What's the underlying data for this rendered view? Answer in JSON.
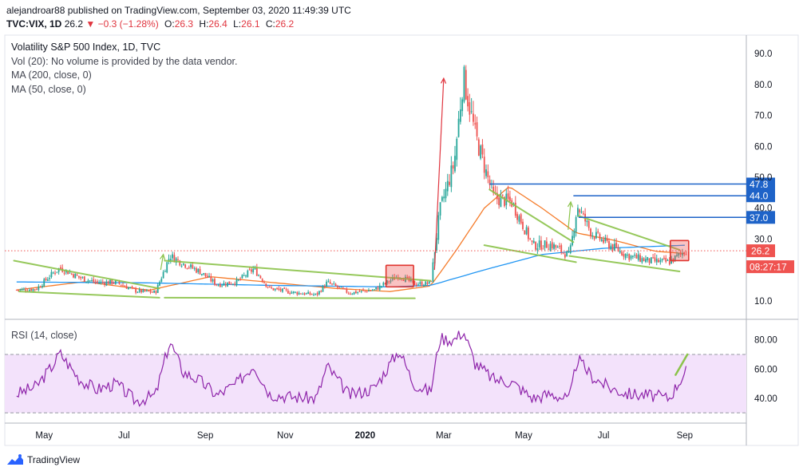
{
  "header": {
    "published_line": "alejandroar88 published on TradingView.com, September 03, 2020 11:49:39 UTC",
    "symbol": "TVC:VIX, 1D",
    "price": "26.2",
    "change": "−0.3 (−1.28%)",
    "o_label": "O:",
    "o_value": "26.3",
    "h_label": "H:",
    "h_value": "26.4",
    "l_label": "L:",
    "l_value": "26.1",
    "c_label": "C:",
    "c_value": "26.2"
  },
  "legend": {
    "title": "Volatility S&P 500 Index, 1D, TVC",
    "vol": "Vol (20): No volume is provided by the data vendor.",
    "ma200": "MA (200, close, 0)",
    "ma50": "MA (50, close, 0)",
    "rsi": "RSI (14, close)"
  },
  "brand": {
    "name": "TradingView",
    "icon": "tradingview-logo-icon"
  },
  "colors": {
    "price_up": "#26a69a",
    "price_down": "#ef5350",
    "ma50": "#f57c2b",
    "ma200": "#2196f3",
    "trend": "#8bc34a",
    "arrow": "#e0353f",
    "level": "#1e63c8",
    "rsi_line": "#8e24aa",
    "rsi_band": "#f3e2fb"
  },
  "chart_data": [
    {
      "type": "candlestick",
      "title": "Volatility S&P 500 Index, 1D, TVC",
      "ylim": [
        4,
        96
      ],
      "y_ticks": [
        10,
        30,
        40,
        50,
        60,
        70,
        80,
        90
      ],
      "y_tick_labels": [
        "10.0",
        "30.0",
        "40.0",
        "50.0",
        "60.0",
        "70.0",
        "80.0",
        "90.0"
      ],
      "x_tick_labels": [
        "May",
        "Jul",
        "Sep",
        "Nov",
        "2020",
        "Mar",
        "May",
        "Jul",
        "Sep"
      ],
      "grid": false,
      "close_series": [
        {
          "date": "2019-04-10",
          "value": 13.5
        },
        {
          "date": "2019-04-25",
          "value": 13.8
        },
        {
          "date": "2019-05-08",
          "value": 19.0
        },
        {
          "date": "2019-05-13",
          "value": 20.6
        },
        {
          "date": "2019-05-28",
          "value": 17.5
        },
        {
          "date": "2019-06-10",
          "value": 15.9
        },
        {
          "date": "2019-06-25",
          "value": 16.0
        },
        {
          "date": "2019-07-10",
          "value": 13.2
        },
        {
          "date": "2019-07-25",
          "value": 12.7
        },
        {
          "date": "2019-08-05",
          "value": 24.6
        },
        {
          "date": "2019-08-15",
          "value": 22.1
        },
        {
          "date": "2019-08-28",
          "value": 19.4
        },
        {
          "date": "2019-09-10",
          "value": 15.2
        },
        {
          "date": "2019-09-25",
          "value": 16.1
        },
        {
          "date": "2019-10-08",
          "value": 20.3
        },
        {
          "date": "2019-10-20",
          "value": 14.0
        },
        {
          "date": "2019-11-05",
          "value": 12.8
        },
        {
          "date": "2019-11-25",
          "value": 11.9
        },
        {
          "date": "2019-12-03",
          "value": 15.9
        },
        {
          "date": "2019-12-20",
          "value": 12.5
        },
        {
          "date": "2020-01-08",
          "value": 13.5
        },
        {
          "date": "2020-01-27",
          "value": 18.2
        },
        {
          "date": "2020-02-07",
          "value": 15.5
        },
        {
          "date": "2020-02-20",
          "value": 15.6
        },
        {
          "date": "2020-02-27",
          "value": 39.2
        },
        {
          "date": "2020-03-09",
          "value": 54.5
        },
        {
          "date": "2020-03-16",
          "value": 82.7
        },
        {
          "date": "2020-03-25",
          "value": 63.9
        },
        {
          "date": "2020-04-08",
          "value": 43.4
        },
        {
          "date": "2020-04-22",
          "value": 41.9
        },
        {
          "date": "2020-05-08",
          "value": 27.9
        },
        {
          "date": "2020-05-22",
          "value": 28.2
        },
        {
          "date": "2020-06-05",
          "value": 24.5
        },
        {
          "date": "2020-06-11",
          "value": 40.8
        },
        {
          "date": "2020-06-22",
          "value": 31.8
        },
        {
          "date": "2020-07-06",
          "value": 27.9
        },
        {
          "date": "2020-07-20",
          "value": 24.5
        },
        {
          "date": "2020-08-05",
          "value": 22.9
        },
        {
          "date": "2020-08-20",
          "value": 22.5
        },
        {
          "date": "2020-09-02",
          "value": 26.2
        }
      ],
      "series": [
        {
          "name": "MA (50, close, 0)",
          "values": [
            {
              "date": "2019-04-10",
              "value": 13.5
            },
            {
              "date": "2019-06-01",
              "value": 16.2
            },
            {
              "date": "2019-07-20",
              "value": 13.4
            },
            {
              "date": "2019-09-05",
              "value": 17.8
            },
            {
              "date": "2019-10-20",
              "value": 16.0
            },
            {
              "date": "2019-12-10",
              "value": 14.0
            },
            {
              "date": "2020-01-20",
              "value": 13.0
            },
            {
              "date": "2020-02-20",
              "value": 14.8
            },
            {
              "date": "2020-03-10",
              "value": 26.0
            },
            {
              "date": "2020-04-01",
              "value": 40.0
            },
            {
              "date": "2020-04-20",
              "value": 47.0
            },
            {
              "date": "2020-05-15",
              "value": 40.0
            },
            {
              "date": "2020-06-10",
              "value": 32.0
            },
            {
              "date": "2020-07-10",
              "value": 29.5
            },
            {
              "date": "2020-08-10",
              "value": 26.0
            },
            {
              "date": "2020-09-02",
              "value": 25.3
            }
          ]
        },
        {
          "name": "MA (200, close, 0)",
          "values": [
            {
              "date": "2019-04-10",
              "value": 16.1
            },
            {
              "date": "2019-07-20",
              "value": 15.8
            },
            {
              "date": "2019-10-20",
              "value": 15.0
            },
            {
              "date": "2020-01-20",
              "value": 14.5
            },
            {
              "date": "2020-02-20",
              "value": 15.0
            },
            {
              "date": "2020-04-01",
              "value": 20.0
            },
            {
              "date": "2020-05-15",
              "value": 25.0
            },
            {
              "date": "2020-07-01",
              "value": 27.0
            },
            {
              "date": "2020-09-02",
              "value": 28.0
            }
          ]
        }
      ],
      "price_levels": [
        {
          "label": "47.8",
          "value": 47.8
        },
        {
          "label": "44.0",
          "value": 44.0
        },
        {
          "label": "37.0",
          "value": 37.0
        }
      ],
      "last_price": {
        "label": "26.2",
        "value": 26.2,
        "countdown": "08:27:17"
      }
    },
    {
      "type": "line",
      "title": "RSI (14, close)",
      "ylim": [
        23,
        94
      ],
      "y_ticks": [
        40,
        60,
        80
      ],
      "y_tick_labels": [
        "40.00",
        "60.00",
        "80.00"
      ],
      "bands": [
        30,
        70
      ],
      "series": [
        {
          "name": "RSI (14, close)",
          "values": [
            {
              "date": "2019-04-10",
              "value": 43
            },
            {
              "date": "2019-04-25",
              "value": 48
            },
            {
              "date": "2019-05-08",
              "value": 63
            },
            {
              "date": "2019-05-13",
              "value": 71
            },
            {
              "date": "2019-05-28",
              "value": 53
            },
            {
              "date": "2019-06-10",
              "value": 46
            },
            {
              "date": "2019-06-25",
              "value": 50
            },
            {
              "date": "2019-07-10",
              "value": 38
            },
            {
              "date": "2019-07-25",
              "value": 42
            },
            {
              "date": "2019-08-05",
              "value": 79
            },
            {
              "date": "2019-08-15",
              "value": 58
            },
            {
              "date": "2019-08-28",
              "value": 52
            },
            {
              "date": "2019-09-10",
              "value": 42
            },
            {
              "date": "2019-09-25",
              "value": 50
            },
            {
              "date": "2019-10-08",
              "value": 63
            },
            {
              "date": "2019-10-20",
              "value": 43
            },
            {
              "date": "2019-11-05",
              "value": 41
            },
            {
              "date": "2019-11-25",
              "value": 40
            },
            {
              "date": "2019-12-03",
              "value": 62
            },
            {
              "date": "2019-12-20",
              "value": 42
            },
            {
              "date": "2020-01-08",
              "value": 47
            },
            {
              "date": "2020-01-27",
              "value": 73
            },
            {
              "date": "2020-02-07",
              "value": 50
            },
            {
              "date": "2020-02-20",
              "value": 44
            },
            {
              "date": "2020-02-27",
              "value": 81
            },
            {
              "date": "2020-03-09",
              "value": 80
            },
            {
              "date": "2020-03-16",
              "value": 86
            },
            {
              "date": "2020-03-25",
              "value": 64
            },
            {
              "date": "2020-04-08",
              "value": 53
            },
            {
              "date": "2020-04-22",
              "value": 51
            },
            {
              "date": "2020-05-08",
              "value": 40
            },
            {
              "date": "2020-05-22",
              "value": 43
            },
            {
              "date": "2020-06-05",
              "value": 39
            },
            {
              "date": "2020-06-11",
              "value": 67
            },
            {
              "date": "2020-06-22",
              "value": 55
            },
            {
              "date": "2020-07-06",
              "value": 47
            },
            {
              "date": "2020-07-20",
              "value": 43
            },
            {
              "date": "2020-08-05",
              "value": 42
            },
            {
              "date": "2020-08-20",
              "value": 40
            },
            {
              "date": "2020-09-02",
              "value": 59
            }
          ]
        }
      ]
    }
  ]
}
